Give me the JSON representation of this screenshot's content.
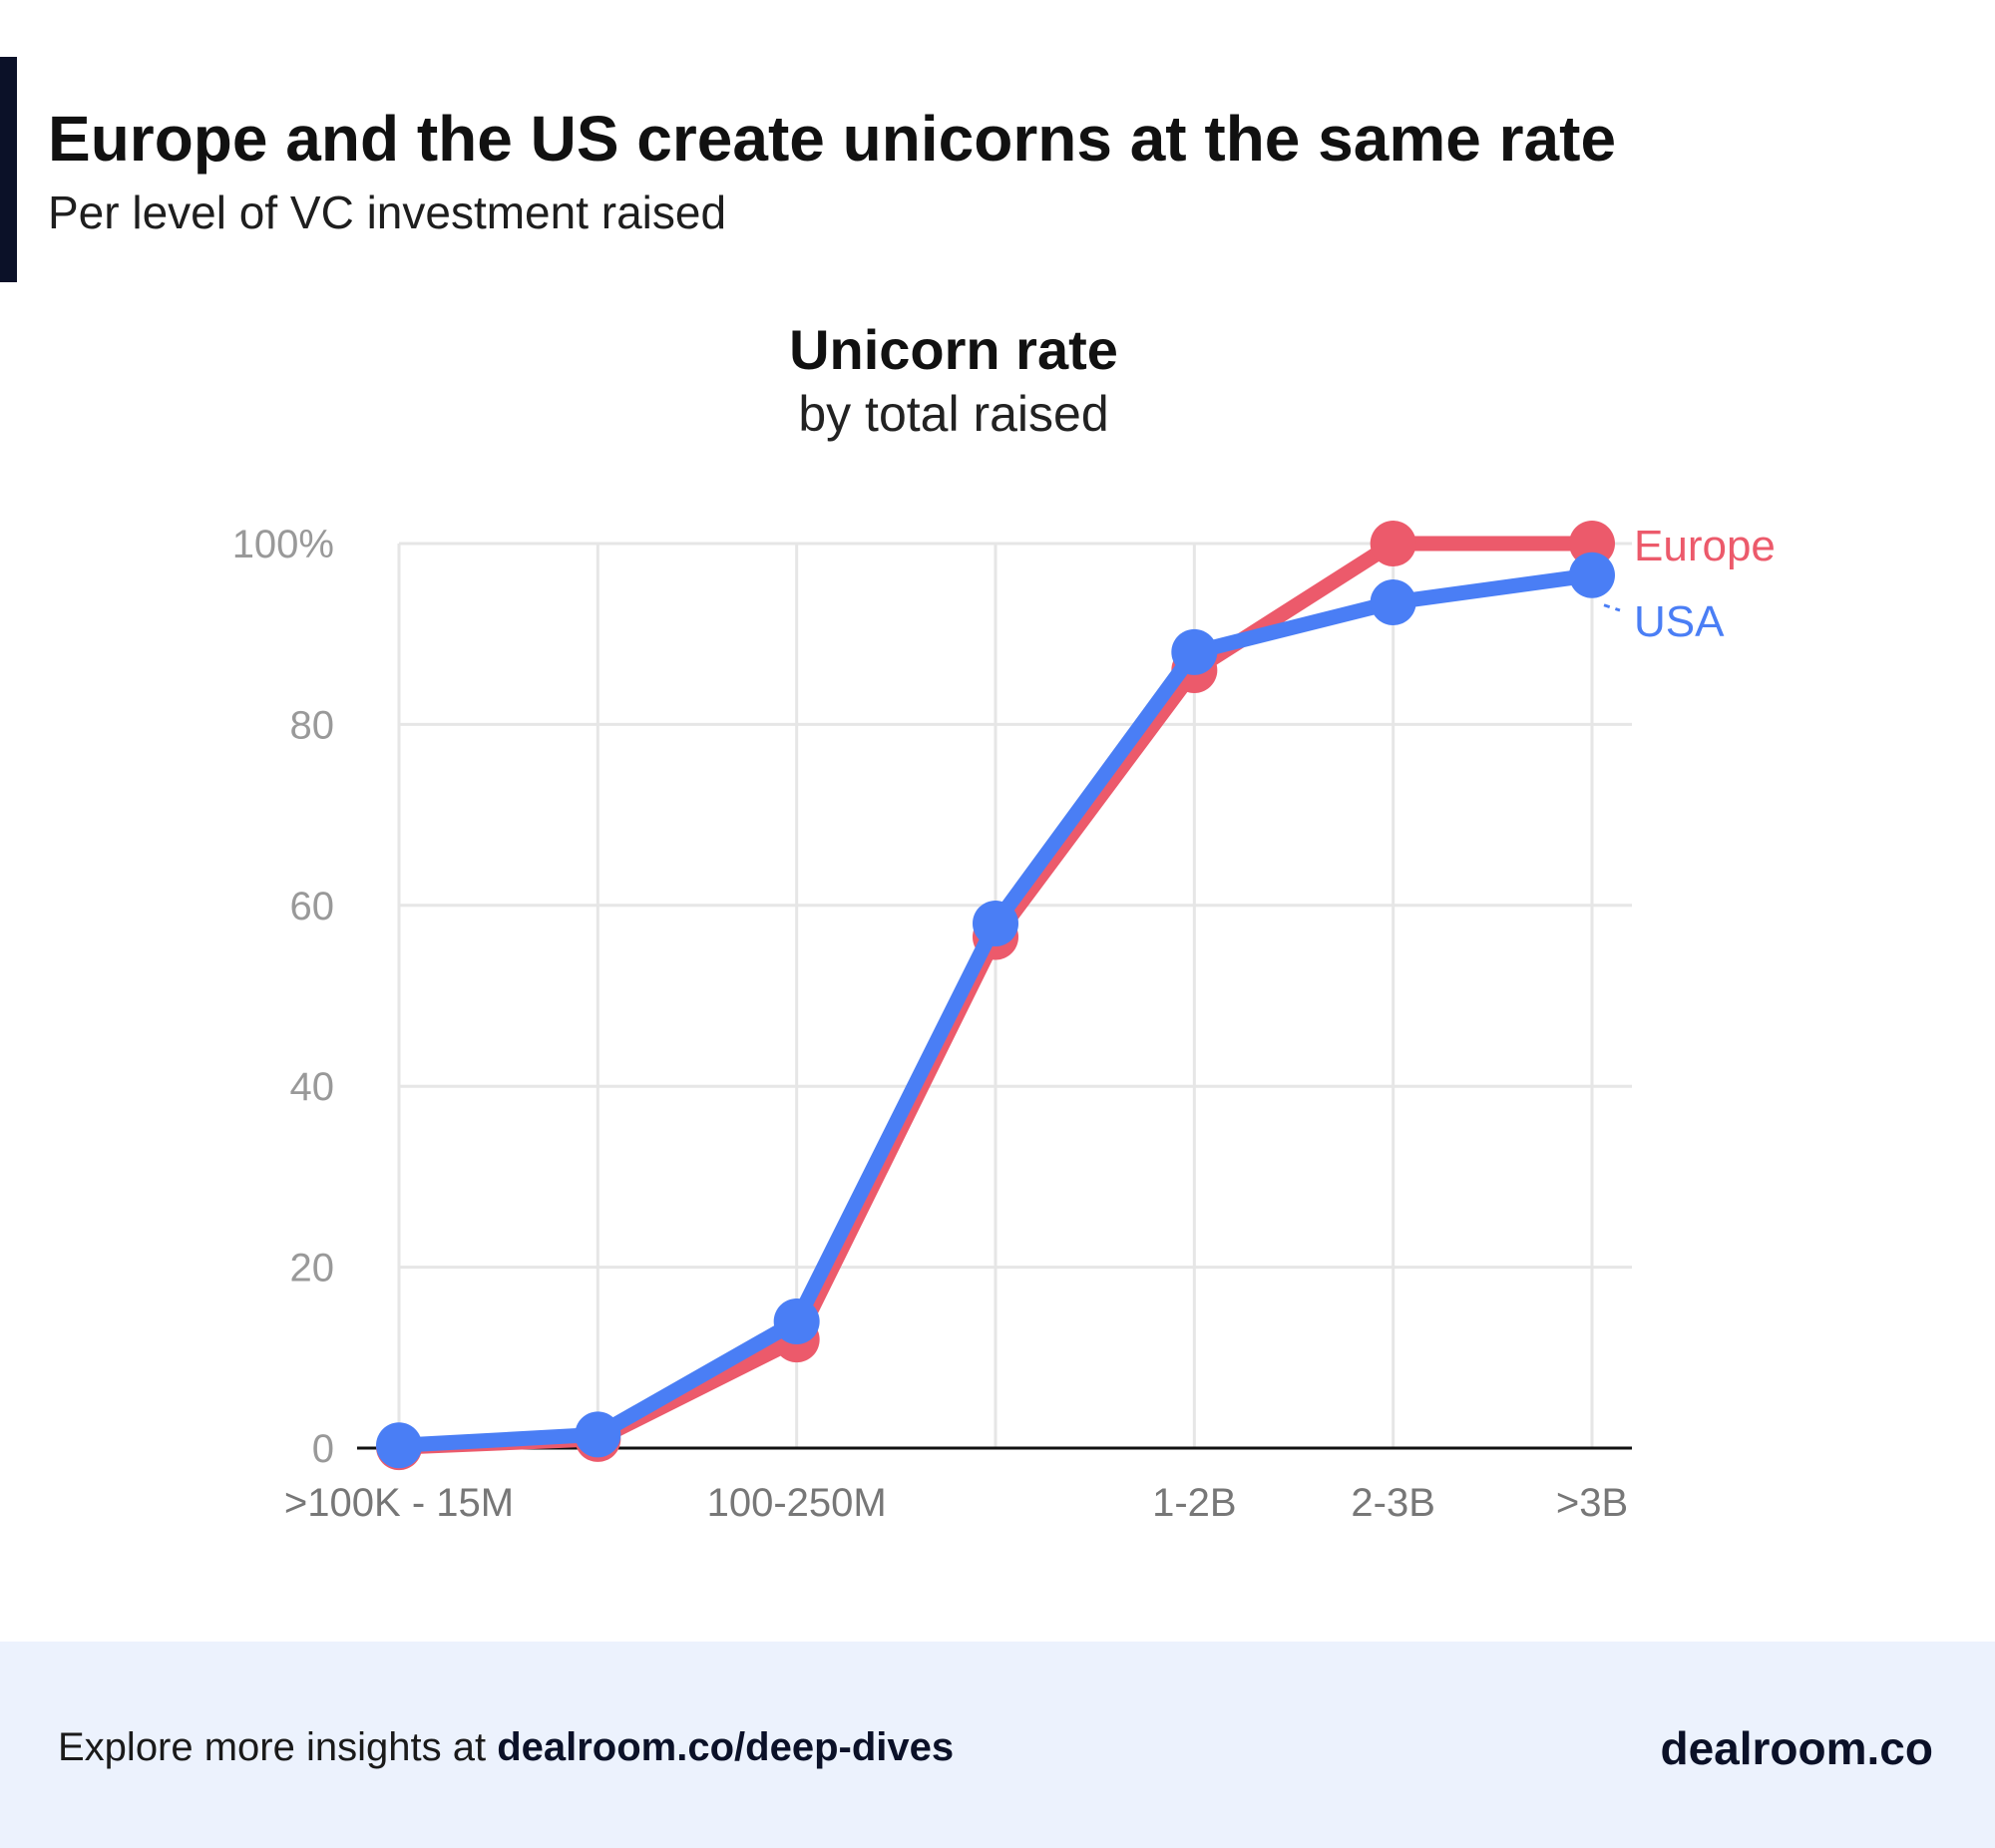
{
  "header": {
    "title": "Europe and the US create unicorns at the same rate",
    "subtitle": "Per level of VC investment raised"
  },
  "chart_data": {
    "type": "line",
    "title": "Unicorn rate",
    "subtitle": "by total raised",
    "xlabel": "",
    "ylabel": "",
    "categories": [
      ">100K - 15M",
      "",
      "100-250M",
      "",
      "1-2B",
      "2-3B",
      ">3B"
    ],
    "y_ticks": [
      "0",
      "20",
      "40",
      "60",
      "80",
      "100%"
    ],
    "ylim": [
      0,
      100
    ],
    "grid": true,
    "legend": "inline-right",
    "series": [
      {
        "name": "Europe",
        "color": "#ec5a6b",
        "values": [
          0.1,
          1,
          12,
          56.5,
          86,
          100,
          100
        ]
      },
      {
        "name": "USA",
        "color": "#4a7ef5",
        "values": [
          0.3,
          1.5,
          14,
          58,
          88,
          93.5,
          96.5
        ]
      }
    ]
  },
  "footer": {
    "prefix": "Explore more insights at ",
    "link": "dealroom.co/deep-dives",
    "brand": "dealroom.co"
  }
}
